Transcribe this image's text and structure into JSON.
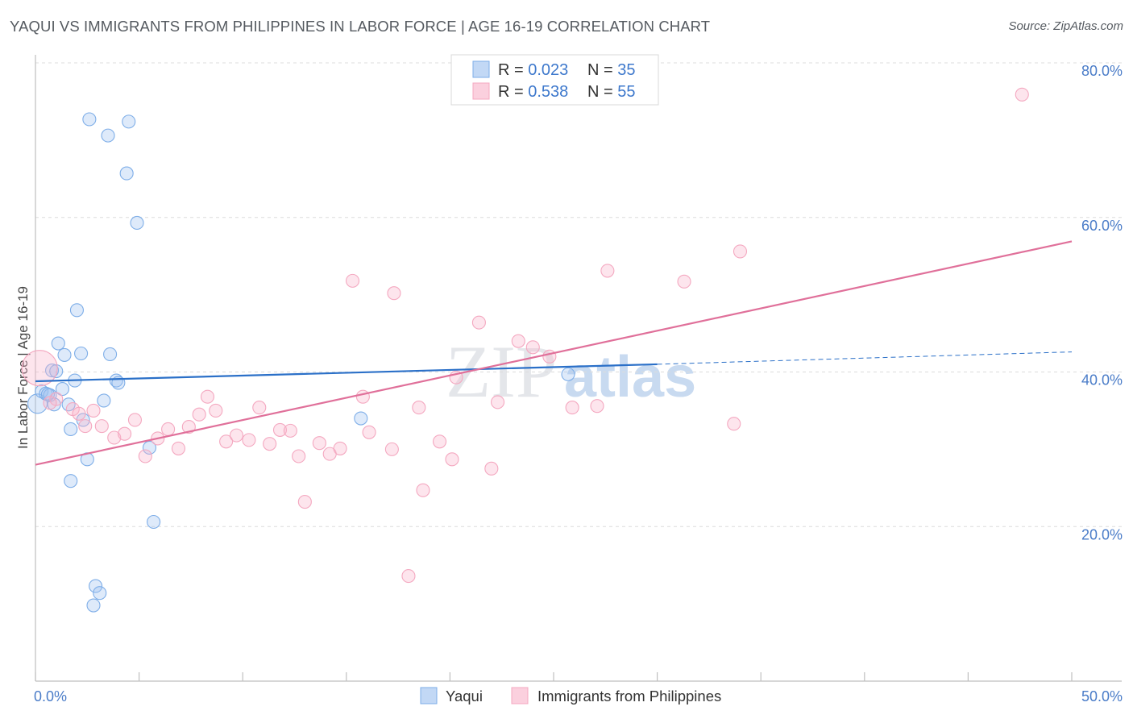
{
  "title": "YAQUI VS IMMIGRANTS FROM PHILIPPINES IN LABOR FORCE | AGE 16-19 CORRELATION CHART",
  "source": "Source: ZipAtlas.com",
  "watermark": {
    "zip": "ZIP",
    "atlas": "atlas"
  },
  "chart_data": {
    "type": "scatter",
    "ylabel": "In Labor Force | Age 16-19",
    "xlim": [
      0,
      50
    ],
    "ylim": [
      0,
      80
    ],
    "x_ticks": [
      {
        "value": 0,
        "label": "0.0%"
      },
      {
        "value": 50,
        "label": "50.0%"
      }
    ],
    "y_ticks": [
      {
        "value": 20,
        "label": "20.0%"
      },
      {
        "value": 40,
        "label": "40.0%"
      },
      {
        "value": 60,
        "label": "60.0%"
      },
      {
        "value": 80,
        "label": "80.0%"
      }
    ],
    "grid": "horizontal dashed",
    "legend_position": "top-center",
    "series": [
      {
        "name": "Yaqui",
        "color": "#7eaee8",
        "line_color": "#2b70c8",
        "r_label": "R = ",
        "r_value": "0.023",
        "n_label": "N = ",
        "n_value": "35",
        "trend": {
          "x0": 0,
          "y0": 38.8,
          "x1": 30,
          "y1": 41.0,
          "x_dash_end": 50,
          "y_dash_end": 42.6
        },
        "points": [
          [
            0.1,
            35.9,
            12
          ],
          [
            0.3,
            37.5,
            8
          ],
          [
            0.5,
            37.2,
            8
          ],
          [
            0.7,
            37.0,
            8
          ],
          [
            0.8,
            40.2,
            8
          ],
          [
            0.9,
            35.8,
            8
          ],
          [
            1.0,
            40.1,
            8
          ],
          [
            1.1,
            43.7,
            8
          ],
          [
            1.3,
            37.8,
            8
          ],
          [
            1.4,
            42.2,
            8
          ],
          [
            1.6,
            35.8,
            8
          ],
          [
            1.7,
            32.6,
            8
          ],
          [
            1.7,
            25.9,
            8
          ],
          [
            1.9,
            38.9,
            8
          ],
          [
            2.0,
            48.0,
            8
          ],
          [
            2.2,
            42.4,
            8
          ],
          [
            2.3,
            33.8,
            8
          ],
          [
            2.5,
            28.7,
            8
          ],
          [
            2.6,
            72.7,
            8
          ],
          [
            2.8,
            9.8,
            8
          ],
          [
            2.9,
            12.3,
            8
          ],
          [
            3.1,
            11.4,
            8
          ],
          [
            3.3,
            36.3,
            8
          ],
          [
            3.5,
            70.6,
            8
          ],
          [
            3.6,
            42.3,
            8
          ],
          [
            3.9,
            38.9,
            8
          ],
          [
            4.0,
            38.6,
            8
          ],
          [
            4.4,
            65.7,
            8
          ],
          [
            4.5,
            72.4,
            8
          ],
          [
            4.9,
            59.3,
            8
          ],
          [
            5.5,
            30.2,
            8
          ],
          [
            5.7,
            20.6,
            8
          ],
          [
            15.7,
            34.0,
            8
          ],
          [
            25.7,
            39.7,
            8
          ],
          [
            0.6,
            37.1,
            8
          ]
        ]
      },
      {
        "name": "Immigrants from Philippines",
        "color": "#f4a8c0",
        "line_color": "#e0709a",
        "r_label": "R = ",
        "r_value": "0.538",
        "n_label": "N = ",
        "n_value": "55",
        "trend": {
          "x0": 0,
          "y0": 28.0,
          "x1": 50,
          "y1": 56.9
        },
        "points": [
          [
            0.2,
            40.5,
            22
          ],
          [
            1.0,
            36.5,
            8
          ],
          [
            1.8,
            35.2,
            8
          ],
          [
            2.1,
            34.6,
            8
          ],
          [
            2.4,
            33.0,
            8
          ],
          [
            2.8,
            35.0,
            8
          ],
          [
            3.2,
            33.0,
            8
          ],
          [
            3.8,
            31.5,
            8
          ],
          [
            4.3,
            32.0,
            8
          ],
          [
            4.8,
            33.8,
            8
          ],
          [
            5.3,
            29.1,
            8
          ],
          [
            5.9,
            31.4,
            8
          ],
          [
            6.4,
            32.6,
            8
          ],
          [
            6.9,
            30.1,
            8
          ],
          [
            7.4,
            32.9,
            8
          ],
          [
            7.9,
            34.5,
            8
          ],
          [
            8.3,
            36.8,
            8
          ],
          [
            8.7,
            35.0,
            8
          ],
          [
            9.2,
            31.0,
            8
          ],
          [
            9.7,
            31.8,
            8
          ],
          [
            10.3,
            31.2,
            8
          ],
          [
            10.8,
            35.4,
            8
          ],
          [
            11.3,
            30.7,
            8
          ],
          [
            11.8,
            32.5,
            8
          ],
          [
            12.3,
            32.4,
            8
          ],
          [
            12.7,
            29.1,
            8
          ],
          [
            13.0,
            23.2,
            8
          ],
          [
            13.7,
            30.8,
            8
          ],
          [
            14.2,
            29.4,
            8
          ],
          [
            14.7,
            30.1,
            8
          ],
          [
            15.3,
            51.8,
            8
          ],
          [
            15.8,
            36.8,
            8
          ],
          [
            16.1,
            32.2,
            8
          ],
          [
            17.2,
            30.0,
            8
          ],
          [
            17.3,
            50.2,
            8
          ],
          [
            18.0,
            13.6,
            8
          ],
          [
            18.7,
            24.7,
            8
          ],
          [
            18.5,
            35.4,
            8
          ],
          [
            19.5,
            31.0,
            8
          ],
          [
            20.1,
            28.7,
            8
          ],
          [
            20.3,
            39.3,
            8
          ],
          [
            21.4,
            46.4,
            8
          ],
          [
            22.0,
            27.5,
            8
          ],
          [
            22.3,
            36.1,
            8
          ],
          [
            23.3,
            44.0,
            8
          ],
          [
            24.0,
            43.2,
            8
          ],
          [
            24.8,
            42.0,
            8
          ],
          [
            25.9,
            35.4,
            8
          ],
          [
            27.1,
            35.6,
            8
          ],
          [
            27.6,
            53.1,
            8
          ],
          [
            31.3,
            51.7,
            8
          ],
          [
            33.7,
            33.3,
            8
          ],
          [
            34.0,
            55.6,
            8
          ],
          [
            47.6,
            75.9,
            8
          ],
          [
            0.7,
            36.0,
            8
          ]
        ]
      }
    ]
  }
}
